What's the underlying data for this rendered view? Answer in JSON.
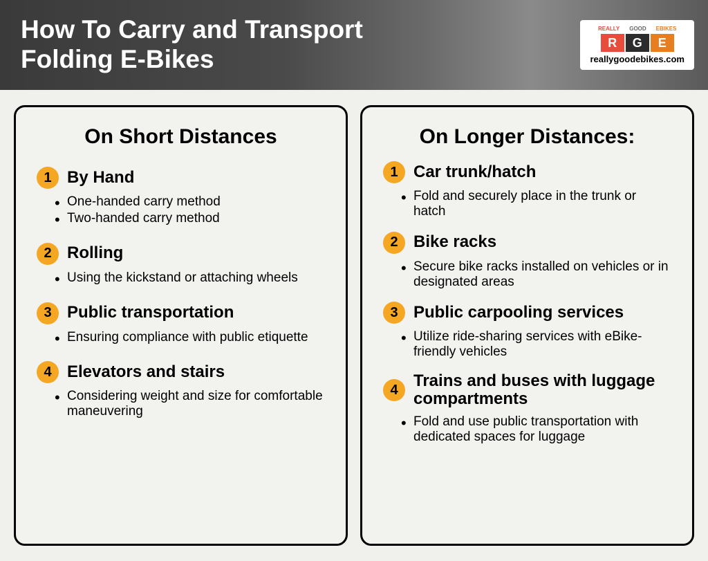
{
  "header": {
    "title": "How To Carry and Transport Folding E-Bikes"
  },
  "logo": {
    "word1": "REALLY",
    "word2": "GOOD",
    "word3": "EBIKES",
    "letter1": "R",
    "letter2": "G",
    "letter3": "E",
    "url": "reallygoodebikes.com"
  },
  "colors": {
    "accent_circle": "#f5a623",
    "logo_red": "#e74c3c",
    "logo_dark": "#2c2c2c",
    "logo_orange": "#e67e22",
    "background": "#f0f0ed",
    "card_bg": "#f2f2ef",
    "text": "#000000",
    "header_text": "#ffffff"
  },
  "left_card": {
    "title": "On Short Distances",
    "items": [
      {
        "num": "1",
        "title": "By Hand",
        "bullets": [
          "One-handed carry method",
          "Two-handed carry method"
        ]
      },
      {
        "num": "2",
        "title": "Rolling",
        "bullets": [
          "Using the kickstand or attaching wheels"
        ]
      },
      {
        "num": "3",
        "title": "Public transportation",
        "bullets": [
          "Ensuring compliance with public etiquette"
        ]
      },
      {
        "num": "4",
        "title": "Elevators and stairs",
        "bullets": [
          "Considering weight and size for comfortable maneuvering"
        ]
      }
    ]
  },
  "right_card": {
    "title": "On Longer Distances:",
    "items": [
      {
        "num": "1",
        "title": "Car trunk/hatch",
        "bullets": [
          "Fold and securely place in the trunk or hatch"
        ]
      },
      {
        "num": "2",
        "title": "Bike racks",
        "bullets": [
          "Secure bike racks installed on vehicles or in designated areas"
        ]
      },
      {
        "num": "3",
        "title": "Public carpooling services",
        "bullets": [
          "Utilize ride-sharing services with eBike-friendly vehicles"
        ]
      },
      {
        "num": "4",
        "title": "Trains and buses with luggage compartments",
        "bullets": [
          "Fold and use public transportation with dedicated spaces for luggage"
        ]
      }
    ]
  }
}
